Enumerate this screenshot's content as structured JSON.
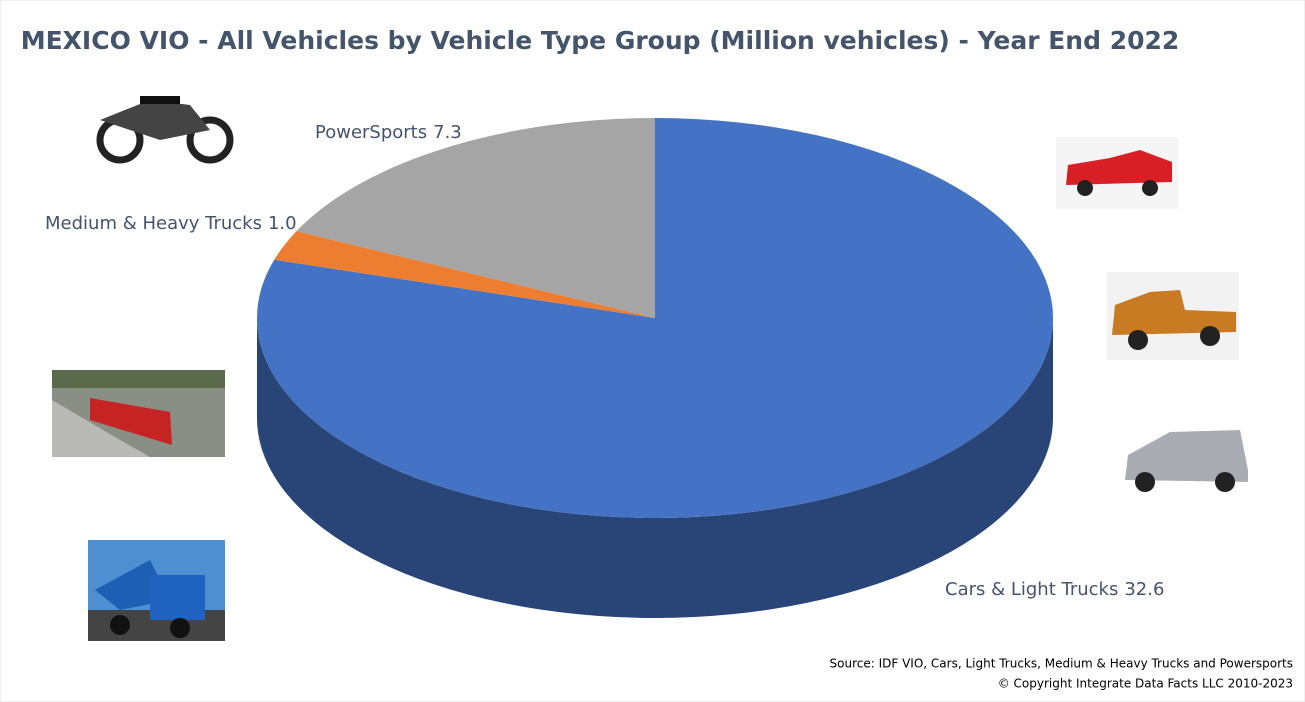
{
  "chart_data": {
    "type": "pie3d",
    "title": "MEXICO VIO - All Vehicles by Vehicle Type Group (Million vehicles) - Year End 2022",
    "categories": [
      "Cars & Light Trucks",
      "Medium & Heavy Trucks",
      "PowerSports"
    ],
    "values": [
      32.6,
      1.0,
      7.3
    ],
    "value_labels": [
      "32.6",
      "1.0",
      "7.3"
    ],
    "colors": [
      "#4472c4",
      "#ed7d31",
      "#a5a5a5"
    ],
    "source": "Source:  IDF VIO, Cars, Light Trucks, Medium & Heavy Trucks and  Powersports",
    "copyright": "© Copyright Integrate Data Facts LLC 2010-2023"
  }
}
